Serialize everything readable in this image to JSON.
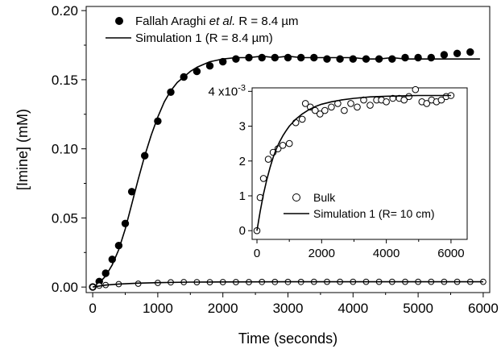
{
  "chart_data": [
    {
      "type": "scatter",
      "xlabel": "Time (seconds)",
      "ylabel": "[Imine] (mM)",
      "xlim": [
        -100,
        6100
      ],
      "ylim": [
        -0.004,
        0.203
      ],
      "xticks": [
        0,
        1000,
        2000,
        3000,
        4000,
        5000,
        6000
      ],
      "yticks": [
        0.0,
        0.05,
        0.1,
        0.15,
        0.2
      ],
      "ytick_labels": [
        "0.00",
        "0.05",
        "0.10",
        "0.15",
        "0.20"
      ],
      "grid": false,
      "legend_position": "top-left",
      "series": [
        {
          "name": "Fallah Araghi et al. R = 8.4 µm",
          "name_parts": [
            "Fallah Araghi ",
            "et al.",
            " R = 8.4 µm"
          ],
          "kind": "markers",
          "marker": "filled-circle",
          "color": "#000000",
          "x": [
            0,
            100,
            200,
            300,
            400,
            500,
            600,
            800,
            1000,
            1200,
            1400,
            1600,
            1800,
            2000,
            2200,
            2400,
            2600,
            2800,
            3000,
            3200,
            3400,
            3600,
            3800,
            4000,
            4200,
            4400,
            4600,
            4800,
            5000,
            5200,
            5400,
            5600,
            5800
          ],
          "y": [
            0.0,
            0.004,
            0.01,
            0.02,
            0.03,
            0.046,
            0.069,
            0.095,
            0.12,
            0.141,
            0.152,
            0.156,
            0.16,
            0.163,
            0.165,
            0.166,
            0.166,
            0.166,
            0.166,
            0.166,
            0.166,
            0.165,
            0.165,
            0.165,
            0.165,
            0.165,
            0.165,
            0.166,
            0.166,
            0.166,
            0.168,
            0.169,
            0.17
          ]
        },
        {
          "name": "Simulation 1 (R = 8.4 µm)",
          "kind": "line",
          "color": "#000000",
          "x": [
            0,
            100,
            200,
            300,
            400,
            500,
            600,
            700,
            800,
            900,
            1000,
            1100,
            1200,
            1300,
            1400,
            1500,
            1600,
            1700,
            1800,
            1900,
            2000,
            2200,
            2400,
            2600,
            2800,
            3000,
            3200,
            3400,
            3600,
            3800,
            4000,
            4200,
            4400,
            4600,
            4800,
            5000,
            5200,
            5400,
            5600,
            5800,
            5950
          ],
          "y": [
            0.0,
            0.003,
            0.008,
            0.016,
            0.027,
            0.042,
            0.06,
            0.078,
            0.095,
            0.11,
            0.123,
            0.134,
            0.142,
            0.148,
            0.152,
            0.156,
            0.159,
            0.161,
            0.163,
            0.164,
            0.165,
            0.166,
            0.166,
            0.167,
            0.166,
            0.167,
            0.166,
            0.166,
            0.166,
            0.166,
            0.166,
            0.165,
            0.165,
            0.166,
            0.165,
            0.165,
            0.165,
            0.165,
            0.165,
            0.165,
            0.165
          ]
        },
        {
          "name": "",
          "kind": "markers",
          "marker": "open-circle",
          "color": "#000000",
          "x": [
            0,
            100,
            200,
            400,
            700,
            1000,
            1200,
            1400,
            1600,
            1800,
            2000,
            2200,
            2400,
            2600,
            2800,
            3000,
            3200,
            3400,
            3600,
            3800,
            4000,
            4200,
            4400,
            4600,
            4800,
            5000,
            5200,
            5400,
            5600,
            5800,
            6000
          ],
          "y": [
            0.0,
            0.001,
            0.0015,
            0.0021,
            0.0024,
            0.003,
            0.0034,
            0.0036,
            0.0035,
            0.0035,
            0.0036,
            0.0036,
            0.0036,
            0.0037,
            0.0037,
            0.0037,
            0.0037,
            0.0038,
            0.0038,
            0.0038,
            0.0038,
            0.0038,
            0.0038,
            0.0038,
            0.0038,
            0.0038,
            0.0038,
            0.0038,
            0.0038,
            0.0038,
            0.0038
          ]
        },
        {
          "name": "",
          "kind": "line",
          "color": "#000000",
          "x": [
            0,
            200,
            400,
            700,
            1000,
            1500,
            2000,
            3000,
            4000,
            5000,
            6000
          ],
          "y": [
            0.0,
            0.0014,
            0.0022,
            0.0028,
            0.0032,
            0.0036,
            0.0037,
            0.0038,
            0.0038,
            0.0038,
            0.0038
          ]
        }
      ]
    },
    {
      "type": "scatter",
      "role": "inset",
      "xlim": [
        -150,
        6500
      ],
      "ylim": [
        -0.25,
        4.1
      ],
      "xticks": [
        0,
        2000,
        4000,
        6000
      ],
      "yticks": [
        0,
        1,
        2,
        3,
        4
      ],
      "ytick_labels": [
        "0",
        "1",
        "2",
        "3",
        "4 x10-3"
      ],
      "ytick_top_label_parts": [
        "4 x10",
        "-3"
      ],
      "grid": false,
      "legend_position": "bottom-right",
      "series": [
        {
          "name": "Bulk",
          "kind": "markers",
          "marker": "open-circle",
          "color": "#000000",
          "x": [
            0,
            100,
            200,
            350,
            500,
            650,
            800,
            1000,
            1200,
            1400,
            1500,
            1650,
            1800,
            1950,
            2100,
            2300,
            2500,
            2700,
            2900,
            3100,
            3300,
            3500,
            3700,
            3850,
            4000,
            4200,
            4400,
            4550,
            4700,
            4900,
            5100,
            5250,
            5400,
            5550,
            5700,
            5850,
            6000
          ],
          "y": [
            0.0,
            0.95,
            1.5,
            2.05,
            2.25,
            2.35,
            2.45,
            2.5,
            3.1,
            3.2,
            3.65,
            3.55,
            3.45,
            3.35,
            3.45,
            3.55,
            3.65,
            3.45,
            3.65,
            3.55,
            3.75,
            3.6,
            3.75,
            3.75,
            3.7,
            3.8,
            3.8,
            3.75,
            3.85,
            4.05,
            3.7,
            3.65,
            3.75,
            3.7,
            3.75,
            3.85,
            3.88
          ]
        },
        {
          "name": "Simulation 1 (R= 10 cm)",
          "kind": "line",
          "color": "#000000",
          "x": [
            0,
            100,
            200,
            300,
            400,
            500,
            600,
            700,
            800,
            900,
            1000,
            1200,
            1400,
            1600,
            1800,
            2000,
            2300,
            2600,
            3000,
            3500,
            4000,
            4500,
            5000,
            5500,
            6000
          ],
          "y": [
            0.0,
            0.55,
            1.05,
            1.45,
            1.8,
            2.1,
            2.35,
            2.55,
            2.72,
            2.87,
            3.0,
            3.2,
            3.35,
            3.47,
            3.56,
            3.63,
            3.7,
            3.75,
            3.8,
            3.84,
            3.86,
            3.87,
            3.88,
            3.88,
            3.88
          ]
        }
      ]
    }
  ]
}
